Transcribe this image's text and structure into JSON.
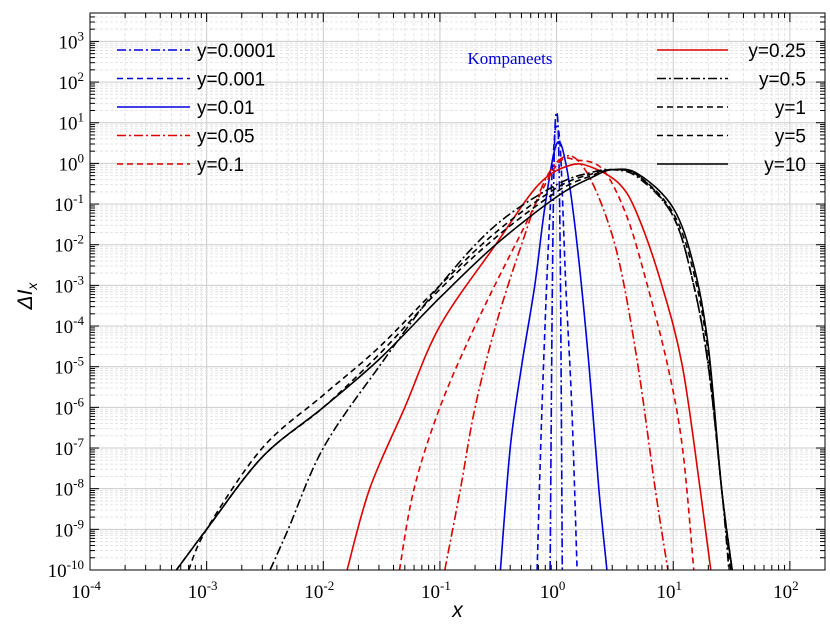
{
  "chart_data": {
    "type": "line",
    "title": "",
    "xlabel": "x",
    "ylabel_prefix": "ΔI",
    "ylabel_subscript": "x",
    "x_scale": "log",
    "y_scale": "log",
    "xlim": [
      0.0001,
      200
    ],
    "ylim": [
      1e-10,
      5000
    ],
    "x_tick_exponents": [
      -4,
      -3,
      -2,
      -1,
      0,
      1,
      2
    ],
    "y_tick_exponents": [
      -10,
      -9,
      -8,
      -7,
      -6,
      -5,
      -4,
      -3,
      -2,
      -1,
      0,
      1,
      2,
      3
    ],
    "tick_base": "10",
    "grid": true,
    "annotation": {
      "text": "Kompaneets",
      "color": "#0000dd"
    },
    "legend_placement": "split: top-left and top-right",
    "series": [
      {
        "name": "y=0.0001",
        "color": "#0000dd",
        "dash": "dashdot",
        "legend_col": "left",
        "x": [
          0.88,
          0.92,
          0.96,
          1.0,
          1.04,
          1.08,
          1.12
        ],
        "y": [
          1e-10,
          0.001,
          3.0,
          18.0,
          3.0,
          0.001,
          1e-10
        ]
      },
      {
        "name": "y=0.001",
        "color": "#0000dd",
        "dash": "dashed",
        "legend_col": "left",
        "x": [
          0.68,
          0.75,
          0.85,
          0.95,
          1.0,
          1.08,
          1.2,
          1.35,
          1.5
        ],
        "y": [
          1e-10,
          1e-06,
          0.01,
          3.0,
          8.0,
          2.0,
          0.001,
          1e-06,
          1e-10
        ]
      },
      {
        "name": "y=0.01",
        "color": "#0000dd",
        "dash": "solid",
        "legend_col": "left",
        "x": [
          0.33,
          0.4,
          0.5,
          0.65,
          0.8,
          1.0,
          1.2,
          1.5,
          1.9,
          2.3,
          2.7
        ],
        "y": [
          1e-10,
          1e-07,
          1e-05,
          0.001,
          0.1,
          3.0,
          1.0,
          0.01,
          1e-05,
          1e-08,
          1e-10
        ]
      },
      {
        "name": "y=0.05",
        "color": "#dd0000",
        "dash": "dashdot",
        "legend_col": "left",
        "x": [
          0.11,
          0.15,
          0.2,
          0.3,
          0.5,
          0.8,
          1.2,
          1.7,
          2.5,
          3.5,
          5.0,
          7.0,
          9.0
        ],
        "y": [
          1e-10,
          1e-08,
          1e-06,
          0.0001,
          0.01,
          0.4,
          1.5,
          0.8,
          0.08,
          0.003,
          1e-05,
          1e-08,
          1e-10
        ]
      },
      {
        "name": "y=0.1",
        "color": "#dd0000",
        "dash": "dashed",
        "legend_col": "left",
        "x": [
          0.045,
          0.06,
          0.1,
          0.2,
          0.5,
          1.0,
          1.5,
          2.5,
          4.0,
          6.0,
          9.0,
          12.0,
          15.0
        ],
        "y": [
          1e-10,
          1e-08,
          1e-06,
          0.0001,
          0.02,
          0.9,
          1.2,
          0.7,
          0.05,
          0.001,
          1e-05,
          1e-07,
          1e-10
        ]
      },
      {
        "name": "y=0.25",
        "color": "#dd0000",
        "dash": "solid",
        "legend_col": "right",
        "x": [
          0.016,
          0.025,
          0.05,
          0.1,
          0.3,
          0.7,
          1.3,
          2.0,
          3.5,
          5.0,
          8.0,
          12.0,
          17.0,
          21.0
        ],
        "y": [
          1e-10,
          1e-08,
          1e-06,
          0.0001,
          0.01,
          0.3,
          0.9,
          0.8,
          0.3,
          0.05,
          0.001,
          1e-05,
          1e-08,
          1e-10
        ]
      },
      {
        "name": "y=0.5",
        "color": "#000000",
        "dash": "dashdot",
        "legend_col": "right",
        "x": [
          0.0035,
          0.005,
          0.01,
          0.03,
          0.1,
          0.3,
          1.0,
          2.0,
          3.0,
          5.0,
          10.0,
          15.0,
          20.0,
          26.0,
          30.0
        ],
        "y": [
          1e-10,
          1e-09,
          1e-07,
          1e-05,
          0.001,
          0.03,
          0.3,
          0.6,
          0.7,
          0.45,
          0.05,
          0.001,
          1e-05,
          1e-08,
          1e-10
        ]
      },
      {
        "name": "y=1",
        "color": "#000000",
        "dash": "dashed",
        "legend_col": "right",
        "x": [
          0.0007,
          0.001,
          0.003,
          0.01,
          0.03,
          0.1,
          0.3,
          1.0,
          2.0,
          3.0,
          5.0,
          10.0,
          15.0,
          20.0,
          26.0,
          31.0
        ],
        "y": [
          1e-10,
          1e-09,
          1e-07,
          2e-06,
          3e-05,
          0.001,
          0.02,
          0.25,
          0.55,
          0.7,
          0.5,
          0.05,
          0.001,
          1e-05,
          1e-08,
          1e-10
        ]
      },
      {
        "name": "y=5",
        "color": "#000000",
        "dash": "dashed",
        "legend_col": "right",
        "x": [
          0.00055,
          0.001,
          0.003,
          0.01,
          0.03,
          0.1,
          0.3,
          1.0,
          2.0,
          3.0,
          5.0,
          10.0,
          15.0,
          20.0,
          26.0,
          32.0
        ],
        "y": [
          1e-10,
          1e-09,
          6e-08,
          1e-06,
          2e-05,
          0.0008,
          0.015,
          0.2,
          0.5,
          0.7,
          0.5,
          0.06,
          0.002,
          2e-05,
          1e-08,
          1e-10
        ]
      },
      {
        "name": "y=10",
        "color": "#000000",
        "dash": "solid",
        "legend_col": "right",
        "x": [
          0.00055,
          0.001,
          0.003,
          0.01,
          0.03,
          0.1,
          0.3,
          1.0,
          2.0,
          3.0,
          5.0,
          10.0,
          15.0,
          20.0,
          26.0,
          32.0
        ],
        "y": [
          1e-10,
          1e-09,
          6e-08,
          1e-06,
          1.5e-05,
          0.0005,
          0.01,
          0.15,
          0.45,
          0.7,
          0.55,
          0.08,
          0.003,
          3e-05,
          1e-08,
          1e-10
        ]
      }
    ]
  }
}
